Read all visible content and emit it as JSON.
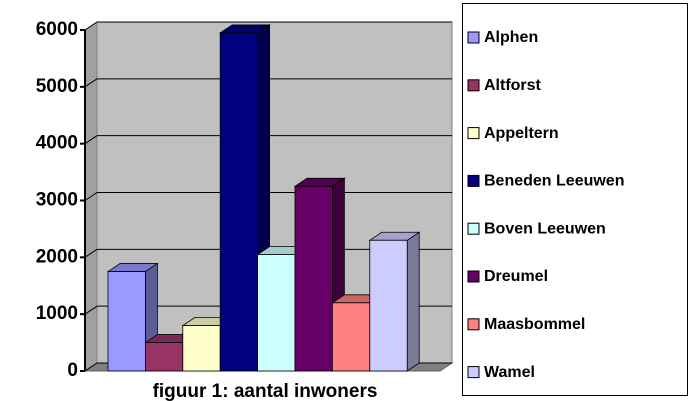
{
  "chart_data": {
    "type": "bar3d",
    "title": "figuur 1: aantal inwoners",
    "series": [
      {
        "name": "Alphen",
        "color": "#9999ff",
        "values": [
          1750
        ]
      },
      {
        "name": "Altforst",
        "color": "#993366",
        "values": [
          500
        ]
      },
      {
        "name": "Appeltern",
        "color": "#ffffcc",
        "values": [
          800
        ]
      },
      {
        "name": "Beneden Leeuwen",
        "color": "#000080",
        "values": [
          5950
        ]
      },
      {
        "name": "Boven Leeuwen",
        "color": "#ccffff",
        "values": [
          2050
        ]
      },
      {
        "name": "Dreumel",
        "color": "#660066",
        "values": [
          3250
        ]
      },
      {
        "name": "Maasbommel",
        "color": "#ff8080",
        "values": [
          1200
        ]
      },
      {
        "name": "Wamel",
        "color": "#ccccff",
        "values": [
          2300
        ]
      }
    ],
    "ylim": [
      0,
      6000
    ],
    "yticks": [
      0,
      1000,
      2000,
      3000,
      4000,
      5000,
      6000
    ],
    "grid": true,
    "legend": "right"
  }
}
